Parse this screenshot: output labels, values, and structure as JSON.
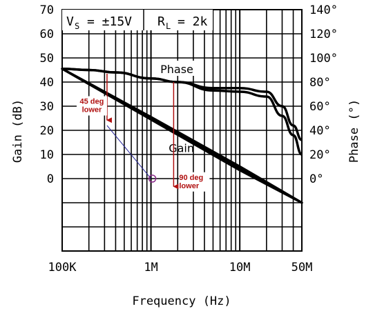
{
  "chart_data": {
    "type": "line",
    "header": {
      "vs_main": "V",
      "vs_sub": "S",
      "vs_value": "= ±15V",
      "rl_main": "R",
      "rl_sub": "L",
      "rl_value": "= 2k"
    },
    "xlabel": "Frequency (Hz)",
    "ylabel_left": "Gain (dB)",
    "ylabel_right": "Phase (°)",
    "x_scale": "log",
    "xlim": [
      100000,
      50000000
    ],
    "x_ticks": [
      {
        "value": 100000,
        "label": "100K"
      },
      {
        "value": 1000000,
        "label": "1M"
      },
      {
        "value": 10000000,
        "label": "10M"
      },
      {
        "value": 50000000,
        "label": "50M"
      }
    ],
    "ylim_left": [
      -30,
      70
    ],
    "y_ticks_left": [
      {
        "value": 70,
        "label": "70"
      },
      {
        "value": 60,
        "label": "60"
      },
      {
        "value": 50,
        "label": "50"
      },
      {
        "value": 40,
        "label": "40"
      },
      {
        "value": 30,
        "label": "30"
      },
      {
        "value": 20,
        "label": "20"
      },
      {
        "value": 10,
        "label": "10"
      },
      {
        "value": 0,
        "label": "0"
      }
    ],
    "ylim_right": [
      -60,
      140
    ],
    "y_ticks_right": [
      {
        "value": 140,
        "label": "140°"
      },
      {
        "value": 120,
        "label": "120°"
      },
      {
        "value": 100,
        "label": "100°"
      },
      {
        "value": 80,
        "label": "80°"
      },
      {
        "value": 60,
        "label": "60°"
      },
      {
        "value": 40,
        "label": "40°"
      },
      {
        "value": 20,
        "label": "20°"
      },
      {
        "value": 0,
        "label": "0°"
      }
    ],
    "grid": true,
    "series": [
      {
        "name": "Gain",
        "axis": "left",
        "bands": [
          {
            "x": [
              100000,
              1000000,
              10000000,
              50000000
            ],
            "y": [
              45.5,
              25.5,
              5.0,
              -10.0
            ]
          },
          {
            "x": [
              100000,
              1000000,
              10000000,
              50000000
            ],
            "y": [
              45.5,
              24.5,
              3.5,
              -10.0
            ]
          }
        ]
      },
      {
        "name": "Phase",
        "axis": "right",
        "bands": [
          {
            "x": [
              100000,
              200000,
              400000,
              1000000,
              2000000,
              5000000,
              10000000,
              20000000,
              30000000,
              40000000,
              50000000
            ],
            "y": [
              91,
              90,
              88,
              83,
              80,
              75,
              75,
              72,
              60,
              44,
              32
            ]
          },
          {
            "x": [
              100000,
              200000,
              400000,
              1000000,
              2000000,
              5000000,
              10000000,
              20000000,
              30000000,
              40000000,
              50000000
            ],
            "y": [
              91,
              90,
              88,
              83,
              80,
              73,
              72,
              68,
              52,
              36,
              20
            ]
          }
        ]
      }
    ],
    "annotations": [
      {
        "text": [
          "45 deg",
          "lower"
        ],
        "color": "#b01010",
        "phase_from": 87,
        "phase_to": 45,
        "freq": 320000
      },
      {
        "text": [
          "90 deg",
          "lower"
        ],
        "color": "#b01010",
        "phase_from": 80,
        "phase_to": -10,
        "freq": 1800000
      }
    ],
    "connector": {
      "color": "#2a2a9a",
      "from_freq": 320000,
      "from_gain": 22,
      "to_freq": 1000000,
      "to_gain": 0
    }
  }
}
